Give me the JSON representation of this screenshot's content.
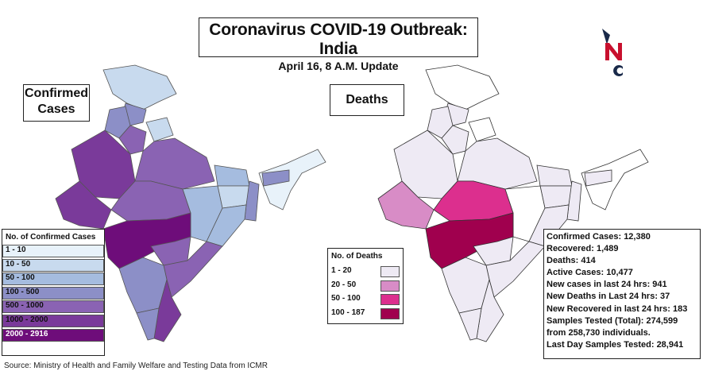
{
  "title": "Coronavirus COVID-19 Outbreak: India",
  "subtitle": "April 16, 8 A.M. Update",
  "logo": {
    "name": "nc-logo",
    "text": "NC",
    "colors": [
      "#1a2a4a",
      "#c8102e"
    ]
  },
  "maps": {
    "confirmed_label": "Confirmed Cases",
    "deaths_label": "Deaths"
  },
  "legend_confirmed": {
    "title": "No. of Confirmed Cases",
    "items": [
      {
        "label": "1 - 10",
        "color": "#e8f2fa"
      },
      {
        "label": "10 - 50",
        "color": "#c8daee"
      },
      {
        "label": "50 - 100",
        "color": "#a5bcdf"
      },
      {
        "label": "100 - 500",
        "color": "#8c8fc7"
      },
      {
        "label": "500 - 1000",
        "color": "#8a63b3"
      },
      {
        "label": "1000 - 2000",
        "color": "#7a3a9a"
      },
      {
        "label": "2000 - 2916",
        "color": "#6e0d7a"
      }
    ]
  },
  "legend_deaths": {
    "title": "No. of Deaths",
    "items": [
      {
        "label": "1 - 20",
        "color": "#eeeaf4"
      },
      {
        "label": "20 - 50",
        "color": "#d88cc6"
      },
      {
        "label": "50 - 100",
        "color": "#dc2f8e"
      },
      {
        "label": "100 - 187",
        "color": "#a0004e"
      }
    ]
  },
  "stats": [
    "Confirmed Cases: 12,380",
    "Recovered: 1,489",
    "Deaths: 414",
    "Active Cases: 10,477",
    "New cases in last 24 hrs: 941",
    "New Deaths in Last 24 hrs: 37",
    "New Recovered in last 24 hrs: 183",
    "Samples Tested (Total): 274,599",
    "from 258,730  individuals.",
    "Last Day Samples Tested: 28,941"
  ],
  "source": "Source: Ministry of Health and Family Welfare and Testing Data from ICMR"
}
